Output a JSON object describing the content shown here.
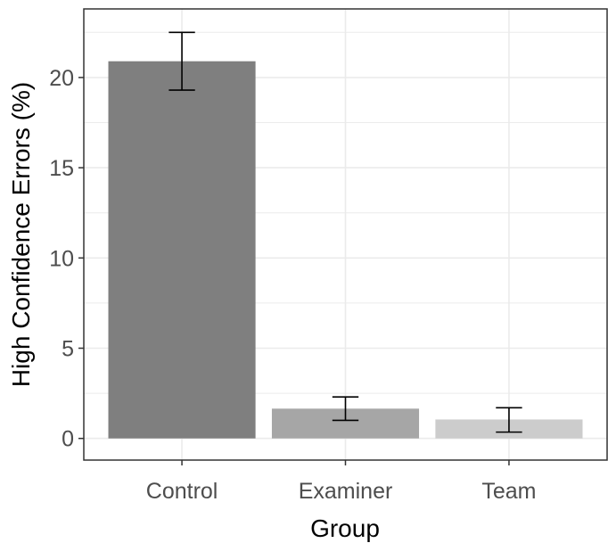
{
  "chart_data": {
    "type": "bar",
    "title": "",
    "xlabel": "Group",
    "ylabel": "High Confidence Errors (%)",
    "categories": [
      "Control",
      "Examiner",
      "Team"
    ],
    "values": [
      20.9,
      1.65,
      1.05
    ],
    "error_low": [
      19.3,
      1.0,
      0.35
    ],
    "error_high": [
      22.5,
      2.3,
      1.7
    ],
    "bar_colors": [
      "#7f7f7f",
      "#a6a6a6",
      "#cccccc"
    ],
    "ylim": [
      -1.2,
      23.8
    ],
    "yticks": [
      0,
      5,
      10,
      15,
      20
    ],
    "ytick_labels": [
      "0",
      "5",
      "10",
      "15",
      "20"
    ],
    "grid": true,
    "legend": "none"
  }
}
